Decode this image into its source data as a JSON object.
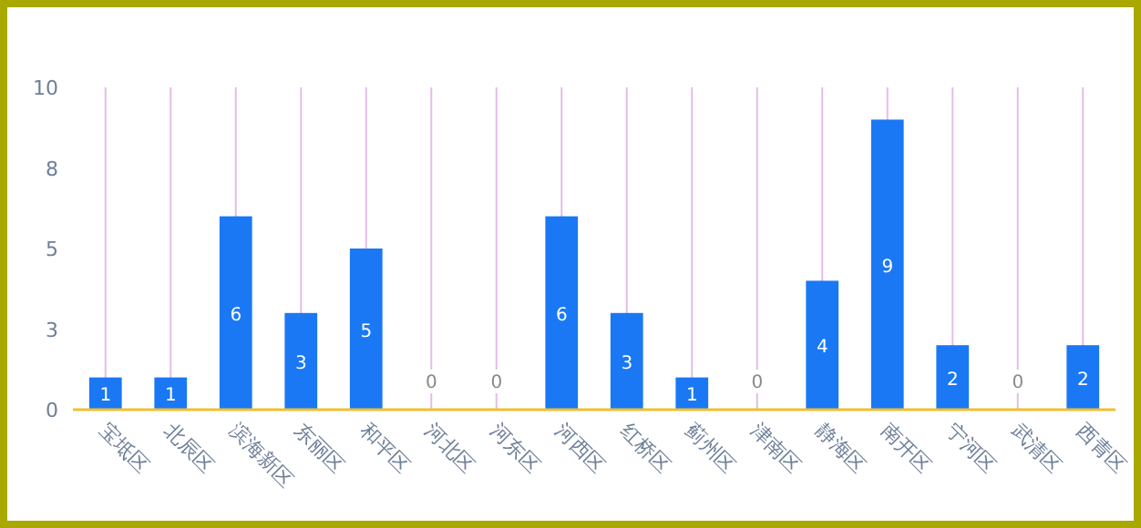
{
  "chart_data": {
    "type": "bar",
    "categories": [
      "宝坻区",
      "北辰区",
      "滨海新区",
      "东丽区",
      "和平区",
      "河北区",
      "河东区",
      "河西区",
      "红桥区",
      "蓟州区",
      "津南区",
      "静海区",
      "南开区",
      "宁河区",
      "武清区",
      "西青区"
    ],
    "values": [
      1,
      1,
      6,
      3,
      5,
      0,
      0,
      6,
      3,
      1,
      0,
      4,
      9,
      2,
      0,
      2
    ],
    "color": "#1a78f5",
    "ylim": [
      0,
      10
    ],
    "yticks": [
      0,
      {
        "value": 2.5,
        "label": "3"
      },
      5,
      {
        "value": 7.5,
        "label": "8"
      },
      10
    ],
    "grid": "x",
    "data_labels": true
  }
}
